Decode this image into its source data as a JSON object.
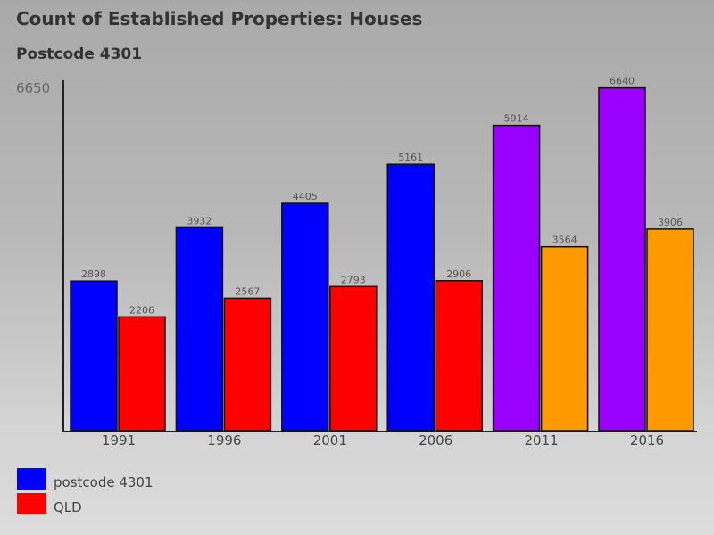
{
  "chart_data": {
    "type": "bar",
    "title": "Count of Established Properties: Houses",
    "subtitle": "Postcode 4301",
    "categories": [
      "1991",
      "1996",
      "2001",
      "2006",
      "2011",
      "2016"
    ],
    "series": [
      {
        "name": "postcode 4301",
        "values": [
          2898,
          3932,
          4405,
          5161,
          5914,
          6640
        ]
      },
      {
        "name": "QLD",
        "values": [
          2206,
          2567,
          2793,
          2906,
          3564,
          3906
        ]
      }
    ],
    "bar_colors": {
      "postcode 4301": [
        "#0000ff",
        "#0000ff",
        "#0000ff",
        "#0000ff",
        "#9900ff",
        "#9900ff"
      ],
      "QLD": [
        "#ff0000",
        "#ff0000",
        "#ff0000",
        "#ff0000",
        "#ff9900",
        "#ff9900"
      ]
    },
    "ylim": [
      0,
      6650
    ],
    "ytick_label": "6650",
    "xlabel": "",
    "ylabel": "",
    "legend": [
      {
        "label": "postcode 4301",
        "color": "#0000ff"
      },
      {
        "label": "QLD",
        "color": "#ff0000"
      }
    ]
  }
}
